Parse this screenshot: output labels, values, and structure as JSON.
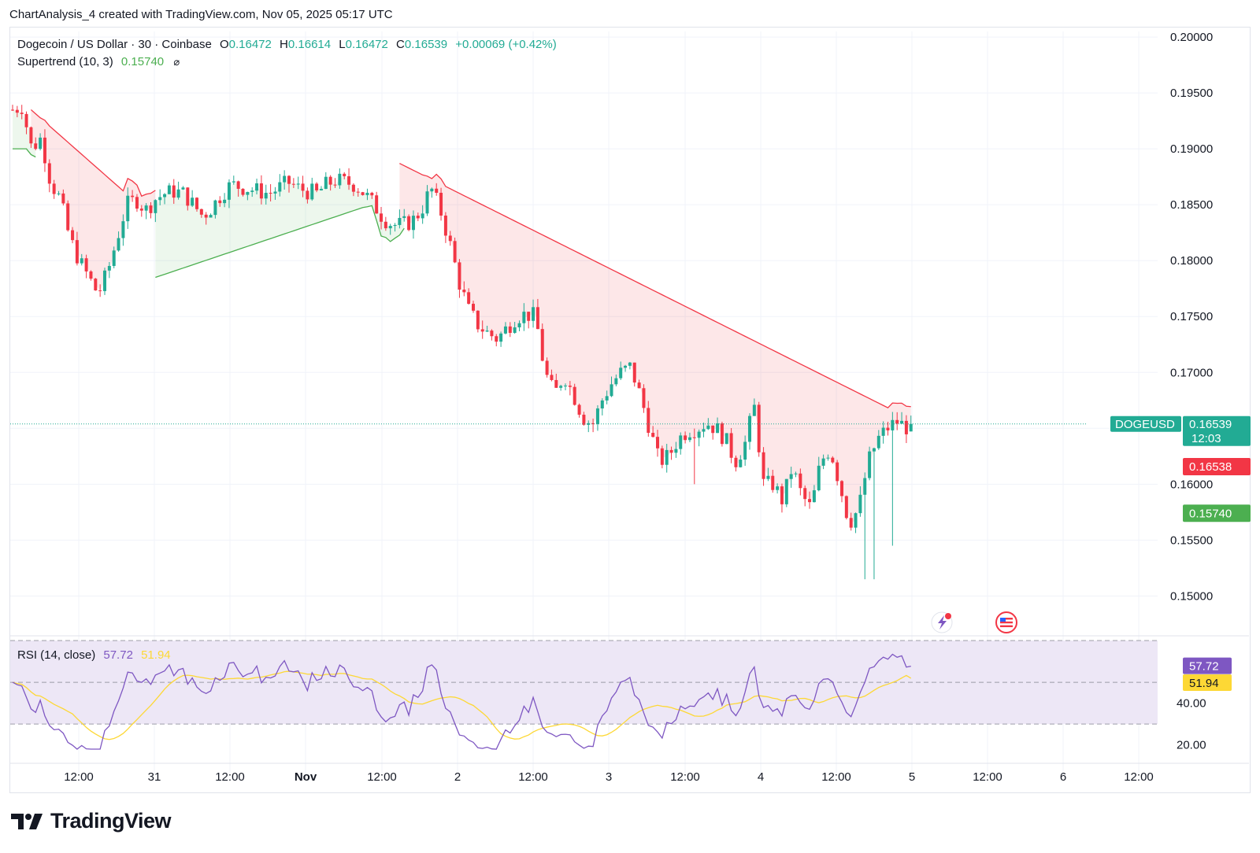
{
  "header": {
    "title": "ChartAnalysis_4 created with TradingView.com, Nov 05, 2025 05:17 UTC"
  },
  "legend": {
    "symbol": "Dogecoin / US Dollar · 30 · Coinbase",
    "o_label": "O",
    "o_value": "0.16472",
    "h_label": "H",
    "h_value": "0.16614",
    "l_label": "L",
    "l_value": "0.16472",
    "c_label": "C",
    "c_value": "0.16539",
    "change": "+0.00069 (+0.42%)",
    "supertrend_label": "Supertrend (10, 3)",
    "supertrend_value": "0.15740",
    "eye_icon": "visibility-off-icon"
  },
  "rsi_legend": {
    "label": "RSI (14, close)",
    "rsi_value": "57.72",
    "ma_value": "51.94"
  },
  "price_axis": {
    "ticks": [
      "0.20000",
      "0.19500",
      "0.19000",
      "0.18500",
      "0.18000",
      "0.17500",
      "0.17000",
      "0.16000",
      "0.15500",
      "0.15000"
    ],
    "symbol_badge": "DOGEUSD",
    "last_price": "0.16539",
    "countdown": "12:03",
    "bid_badge": "0.16538",
    "supertrend_badge": "0.15740"
  },
  "rsi_axis": {
    "ticks": [
      "40.00",
      "20.00"
    ],
    "rsi_badge": "57.72",
    "ma_badge": "51.94"
  },
  "time_axis": {
    "ticks": [
      "12:00",
      "31",
      "12:00",
      "Nov",
      "12:00",
      "2",
      "12:00",
      "3",
      "12:00",
      "4",
      "12:00",
      "5",
      "12:00",
      "6",
      "12:00"
    ]
  },
  "footer": {
    "brand": "TradingView"
  },
  "colors": {
    "up": "#22ab94",
    "down": "#f23645",
    "supertrend_up": "#4caf50",
    "supertrend_down": "#f23645",
    "rsi": "#7e57c2",
    "rsi_ma": "#fdd835",
    "rsi_band": "#ede7f6"
  },
  "chart_data": {
    "type": "candlestick",
    "title": "Dogecoin / US Dollar · 30 · Coinbase",
    "interval": "30",
    "ylim": [
      0.147,
      0.2005
    ],
    "path_points": [
      [
        0,
        0.1935
      ],
      [
        2,
        0.1938
      ],
      [
        4,
        0.19
      ],
      [
        6,
        0.191
      ],
      [
        8,
        0.187
      ],
      [
        10,
        0.1855
      ],
      [
        12,
        0.182
      ],
      [
        14,
        0.18
      ],
      [
        16,
        0.1785
      ],
      [
        18,
        0.177
      ],
      [
        20,
        0.179
      ],
      [
        22,
        0.182
      ],
      [
        24,
        0.185
      ],
      [
        26,
        0.1855
      ],
      [
        28,
        0.1845
      ],
      [
        30,
        0.1855
      ],
      [
        32,
        0.186
      ],
      [
        34,
        0.1862
      ],
      [
        36,
        0.186
      ],
      [
        38,
        0.185
      ],
      [
        40,
        0.184
      ],
      [
        42,
        0.1848
      ],
      [
        44,
        0.186
      ],
      [
        46,
        0.1868
      ],
      [
        48,
        0.1866
      ],
      [
        50,
        0.1864
      ],
      [
        52,
        0.1862
      ],
      [
        54,
        0.186
      ],
      [
        56,
        0.1865
      ],
      [
        58,
        0.187
      ],
      [
        60,
        0.1865
      ],
      [
        62,
        0.1862
      ],
      [
        64,
        0.186
      ],
      [
        66,
        0.1868
      ],
      [
        68,
        0.1872
      ],
      [
        70,
        0.187
      ],
      [
        72,
        0.1868
      ],
      [
        74,
        0.186
      ],
      [
        76,
        0.185
      ],
      [
        78,
        0.1838
      ],
      [
        80,
        0.1832
      ],
      [
        82,
        0.1832
      ],
      [
        84,
        0.1835
      ],
      [
        86,
        0.1845
      ],
      [
        88,
        0.1865
      ],
      [
        90,
        0.1845
      ],
      [
        92,
        0.1815
      ],
      [
        94,
        0.178
      ],
      [
        96,
        0.1755
      ],
      [
        98,
        0.1742
      ],
      [
        100,
        0.1735
      ],
      [
        102,
        0.173
      ],
      [
        104,
        0.174
      ],
      [
        106,
        0.175
      ],
      [
        108,
        0.1752
      ],
      [
        110,
        0.175
      ],
      [
        112,
        0.17
      ],
      [
        114,
        0.168
      ],
      [
        116,
        0.1698
      ],
      [
        118,
        0.168
      ],
      [
        120,
        0.166
      ],
      [
        122,
        0.1653
      ],
      [
        124,
        0.1675
      ],
      [
        126,
        0.169
      ],
      [
        128,
        0.17
      ],
      [
        130,
        0.1705
      ],
      [
        132,
        0.168
      ],
      [
        134,
        0.165
      ],
      [
        136,
        0.162
      ],
      [
        138,
        0.1625
      ],
      [
        140,
        0.164
      ],
      [
        142,
        0.1648
      ],
      [
        144,
        0.165
      ],
      [
        146,
        0.1655
      ],
      [
        148,
        0.165
      ],
      [
        150,
        0.164
      ],
      [
        152,
        0.162
      ],
      [
        154,
        0.1635
      ],
      [
        156,
        0.167
      ],
      [
        158,
        0.16
      ],
      [
        160,
        0.16
      ],
      [
        162,
        0.1585
      ],
      [
        164,
        0.1615
      ],
      [
        166,
        0.159
      ],
      [
        168,
        0.1578
      ],
      [
        170,
        0.162
      ],
      [
        172,
        0.1632
      ],
      [
        174,
        0.16
      ],
      [
        176,
        0.1565
      ],
      [
        178,
        0.1578
      ],
      [
        180,
        0.162
      ],
      [
        182,
        0.164
      ],
      [
        184,
        0.165
      ],
      [
        186,
        0.1656
      ],
      [
        188,
        0.1651
      ],
      [
        189,
        0.1654
      ]
    ],
    "supertrend": [
      {
        "from": 0,
        "to": 5,
        "dir": "up",
        "value": 0.19
      },
      {
        "from": 4,
        "to": 31,
        "dir": "down",
        "value": 0.1935,
        "end": 0.1837
      },
      {
        "from": 31,
        "to": 85,
        "dir": "up",
        "value": 0.1785,
        "end": 0.186
      },
      {
        "from": 84,
        "to": 196,
        "dir": "down",
        "value": 0.1887,
        "end": 0.1656
      },
      {
        "from": 196,
        "to": 200,
        "dir": "up",
        "value": 0.1575
      }
    ],
    "rsi": {
      "ylim": [
        15,
        70
      ],
      "levels": [
        70,
        50,
        30
      ],
      "last_rsi": 57.72,
      "last_ma": 51.94
    },
    "time_axis_ticks": [
      "12:00",
      "31",
      "12:00",
      "Nov",
      "12:00",
      "2",
      "12:00",
      "3",
      "12:00",
      "4",
      "12:00",
      "5",
      "12:00",
      "6",
      "12:00"
    ]
  }
}
